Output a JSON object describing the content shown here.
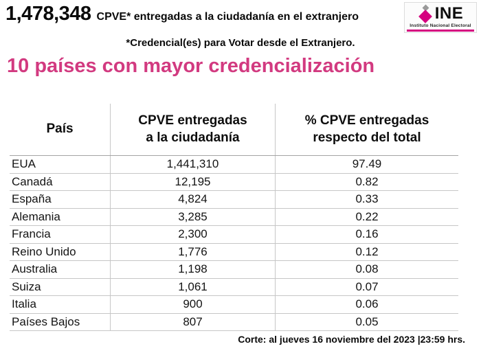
{
  "header": {
    "total": "1,478,348",
    "total_caption": "CPVE* entregadas a la ciudadanía en el extranjero",
    "footnote": "*Credencial(es) para Votar desde el Extranjero.",
    "logo": {
      "name": "INE",
      "subtitle": "Instituto Nacional Electoral"
    }
  },
  "title": "10 países con mayor credencialización",
  "table": {
    "columns": [
      {
        "line1": "País",
        "line2": ""
      },
      {
        "line1": "CPVE entregadas",
        "line2": "a la ciudadanía"
      },
      {
        "line1": "% CPVE entregadas",
        "line2": "respecto del total"
      }
    ],
    "rows": [
      [
        "EUA",
        "1,441,310",
        "97.49"
      ],
      [
        "Canadá",
        "12,195",
        "0.82"
      ],
      [
        "España",
        "4,824",
        "0.33"
      ],
      [
        "Alemania",
        "3,285",
        "0.22"
      ],
      [
        "Francia",
        "2,300",
        "0.16"
      ],
      [
        "Reino Unido",
        "1,776",
        "0.12"
      ],
      [
        "Australia",
        "1,198",
        "0.08"
      ],
      [
        "Suiza",
        "1,061",
        "0.07"
      ],
      [
        "Italia",
        "900",
        "0.06"
      ],
      [
        "Países Bajos",
        "807",
        "0.05"
      ]
    ]
  },
  "footer": {
    "cutoff": "Corte: al jueves 16 noviembre del 2023 |23:59 hrs."
  },
  "colors": {
    "title_pink": "#D23A80",
    "ine_pink": "#D5007F",
    "border_gray": "#C6C6C6"
  }
}
